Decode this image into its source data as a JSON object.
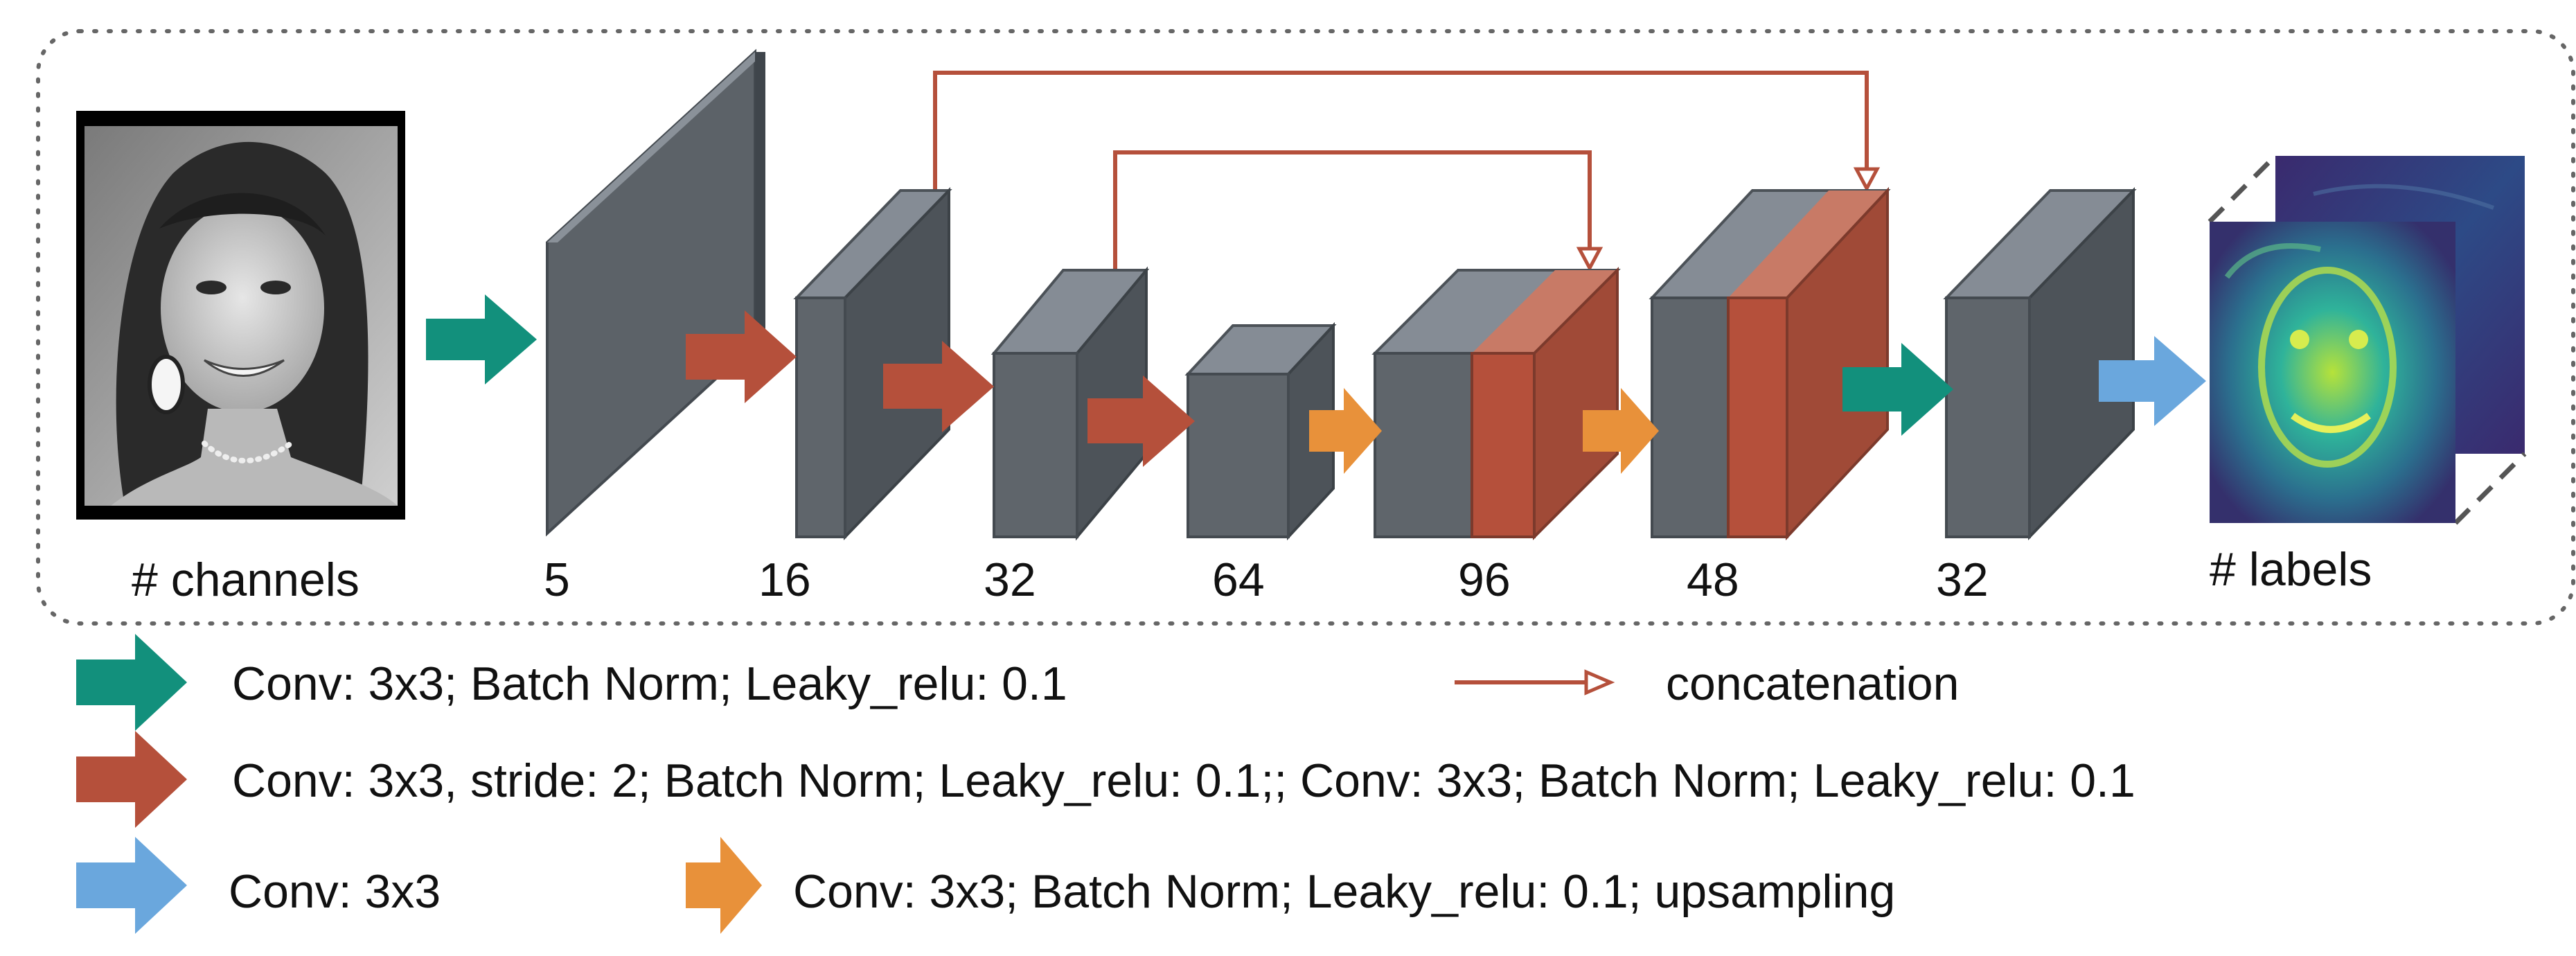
{
  "input": {
    "label": "# channels",
    "image_name": "input-face-photo"
  },
  "layers": [
    {
      "id": "l5",
      "label": "5"
    },
    {
      "id": "l16",
      "label": "16"
    },
    {
      "id": "l32a",
      "label": "32"
    },
    {
      "id": "l64",
      "label": "64"
    },
    {
      "id": "l96",
      "label": "96"
    },
    {
      "id": "l48",
      "label": "48"
    },
    {
      "id": "l32b",
      "label": "32"
    }
  ],
  "output": {
    "label": "# labels",
    "image_name": "output-feature-maps"
  },
  "legend": {
    "teal": "Conv: 3x3; Batch Norm; Leaky_relu: 0.1",
    "concat": "concatenation",
    "red": "Conv: 3x3, stride: 2; Batch Norm; Leaky_relu: 0.1;; Conv: 3x3; Batch Norm; Leaky_relu: 0.1",
    "blue": "Conv: 3x3",
    "orange": "Conv: 3x3; Batch Norm; Leaky_relu: 0.1; upsampling"
  },
  "colors": {
    "teal": "#12907c",
    "red": "#b5503b",
    "blue": "#6aa7dd",
    "orange": "#e8913a",
    "concat": "#b5503b",
    "block_front": "#5d636a",
    "block_top": "#828a93",
    "block_side": "#454b51"
  }
}
